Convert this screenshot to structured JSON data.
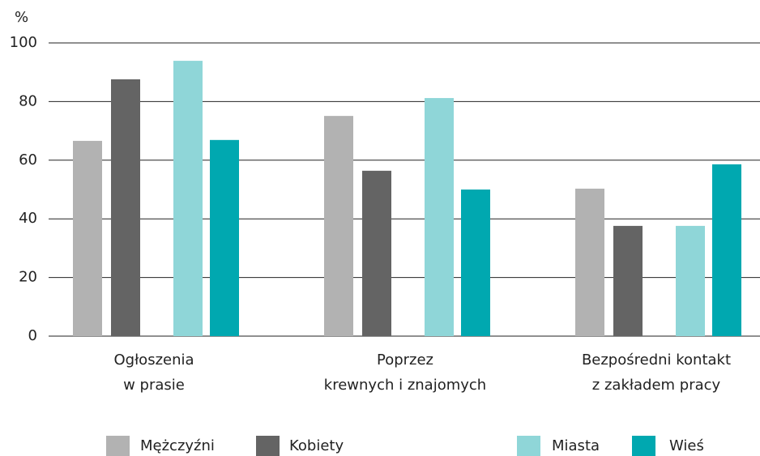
{
  "chart_data": {
    "type": "bar",
    "y_label": "%",
    "categories": [
      [
        "Ogłoszenia",
        "w prasie"
      ],
      [
        "Poprzez",
        "krewnych i znajomych"
      ],
      [
        "Bezpośredni kontakt",
        "z zakładem pracy"
      ]
    ],
    "series": [
      {
        "name": "Mężczyźni",
        "color": "#b2b2b2",
        "values": [
          66.6,
          75.1,
          50.3
        ]
      },
      {
        "name": "Kobiety",
        "color": "#646464",
        "values": [
          87.6,
          56.4,
          37.6
        ]
      },
      {
        "name": "Miasta",
        "color": "#8fd6d8",
        "values": [
          93.9,
          81.2,
          37.6
        ]
      },
      {
        "name": "Wieś",
        "color": "#00a8b0",
        "values": [
          66.9,
          50.0,
          58.6
        ]
      }
    ],
    "ylim": [
      0,
      100
    ],
    "yticks": [
      0,
      20,
      40,
      60,
      80,
      100
    ],
    "grid": true
  }
}
